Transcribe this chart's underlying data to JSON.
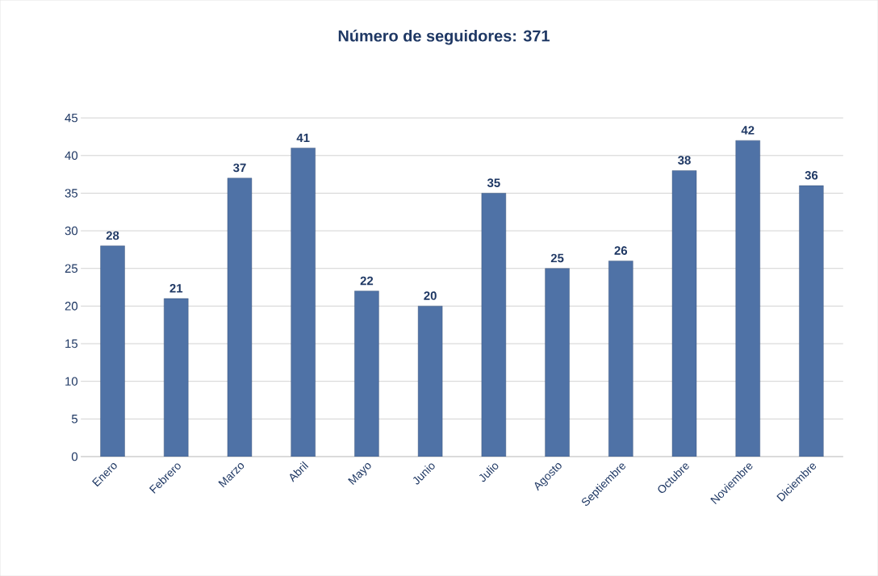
{
  "chart_data": {
    "type": "bar",
    "title": "Número de seguidores: 371",
    "categories": [
      "Enero",
      "Febrero",
      "Marzo",
      "Abril",
      "Mayo",
      "Junio",
      "Julio",
      "Agosto",
      "Septiembre",
      "Octubre",
      "Noviembre",
      "Diciembre"
    ],
    "values": [
      28,
      21,
      37,
      41,
      22,
      20,
      35,
      25,
      26,
      38,
      42,
      36
    ],
    "color": "#4f72a6",
    "ylim": [
      0,
      45
    ],
    "yticks": [
      0,
      5,
      10,
      15,
      20,
      25,
      30,
      35,
      40,
      45
    ],
    "grid": "y",
    "data_labels": true
  }
}
